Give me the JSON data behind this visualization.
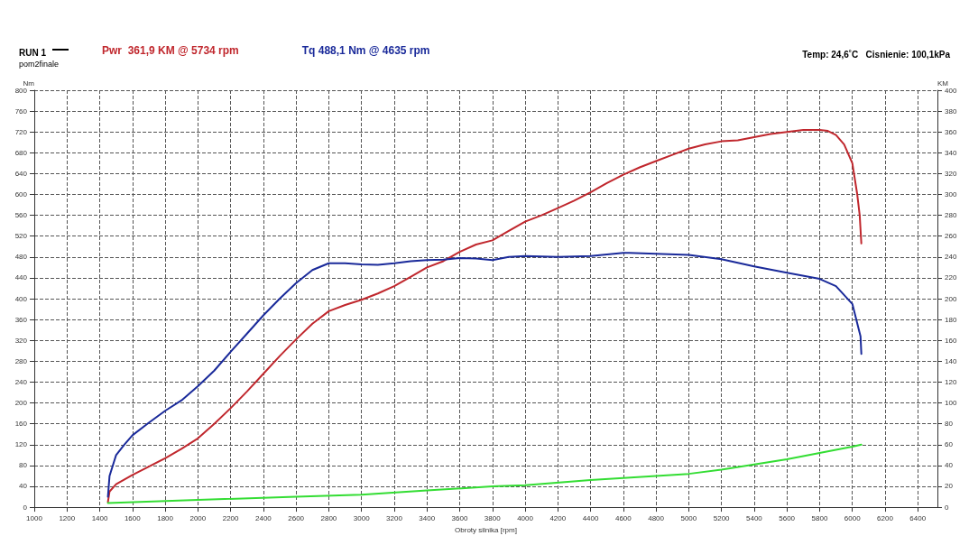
{
  "chart_data": {
    "type": "line",
    "title": "RUN 1",
    "subtitle": "pom2finale",
    "xlabel": "Obroty silnika [rpm]",
    "ylabel": "Nm",
    "y2label": "KM",
    "annotations": [
      "Temp: 24,6˚C   Cisnienie: 100,1kPa"
    ],
    "xlim": [
      1000,
      6520
    ],
    "xticks": [
      1000,
      1200,
      1400,
      1600,
      1800,
      2000,
      2200,
      2400,
      2600,
      2800,
      3000,
      3200,
      3400,
      3600,
      3800,
      4000,
      4200,
      4400,
      4600,
      4800,
      5000,
      5200,
      5400,
      5600,
      5800,
      6000,
      6200,
      6400
    ],
    "ylim": [
      0,
      800
    ],
    "yticks": [
      0,
      40,
      80,
      120,
      160,
      200,
      240,
      280,
      320,
      360,
      400,
      440,
      480,
      520,
      560,
      600,
      640,
      680,
      720,
      760,
      800
    ],
    "y2lim": [
      0,
      400
    ],
    "y2ticks": [
      0,
      20,
      40,
      60,
      80,
      100,
      120,
      140,
      160,
      180,
      200,
      220,
      240,
      260,
      280,
      300,
      320,
      340,
      360,
      380,
      400
    ],
    "grid": true,
    "legend": "top left",
    "marker": "none",
    "line_style": "solid",
    "series": [
      {
        "name": "Pwr  361,9 KM @ 5734 rpm",
        "color": "#c0272d",
        "axis": "y2",
        "x": [
          1450,
          1460,
          1500,
          1600,
          1700,
          1800,
          1900,
          2000,
          2100,
          2200,
          2300,
          2400,
          2500,
          2600,
          2700,
          2800,
          2900,
          3000,
          3100,
          3200,
          3300,
          3400,
          3500,
          3600,
          3700,
          3800,
          3900,
          4000,
          4100,
          4200,
          4300,
          4400,
          4500,
          4600,
          4700,
          4800,
          4900,
          5000,
          5100,
          5200,
          5300,
          5400,
          5500,
          5600,
          5700,
          5734,
          5800,
          5850,
          5900,
          5950,
          6000,
          6030,
          6045,
          6055
        ],
        "values": [
          5,
          15,
          22,
          31,
          39,
          47,
          56,
          66,
          80,
          95,
          111,
          128,
          145,
          161,
          176,
          188,
          194,
          199,
          205,
          212,
          221,
          230,
          236,
          245,
          252,
          256,
          265,
          274,
          280,
          287,
          294,
          302,
          311,
          319,
          326,
          332,
          338,
          344,
          348,
          351,
          352,
          355,
          358,
          360,
          362,
          362,
          362,
          361,
          357,
          348,
          330,
          300,
          280,
          253
        ]
      },
      {
        "name": "Tq 488,1 Nm @ 4635 rpm",
        "color": "#1a2a9a",
        "axis": "y",
        "x": [
          1450,
          1460,
          1500,
          1550,
          1600,
          1700,
          1800,
          1900,
          2000,
          2100,
          2200,
          2300,
          2400,
          2500,
          2600,
          2700,
          2800,
          2900,
          3000,
          3100,
          3200,
          3300,
          3400,
          3500,
          3600,
          3700,
          3800,
          3900,
          4000,
          4200,
          4400,
          4600,
          4635,
          4800,
          5000,
          5200,
          5400,
          5600,
          5800,
          5900,
          6000,
          6050,
          6055
        ],
        "values": [
          20,
          60,
          100,
          120,
          138,
          162,
          185,
          205,
          232,
          262,
          298,
          333,
          368,
          400,
          430,
          455,
          468,
          468,
          466,
          465,
          468,
          472,
          474,
          475,
          478,
          477,
          474,
          480,
          482,
          480,
          482,
          488,
          488,
          486,
          484,
          476,
          462,
          450,
          438,
          424,
          390,
          328,
          294
        ]
      },
      {
        "color": "#33dd33",
        "axis": "y2",
        "x": [
          1450,
          2000,
          2600,
          3000,
          3400,
          3800,
          4000,
          4400,
          4800,
          5000,
          5200,
          5400,
          5600,
          5800,
          6000,
          6055
        ],
        "values": [
          4,
          7,
          10,
          12,
          16,
          20,
          21,
          26,
          30,
          32,
          36,
          41,
          46,
          52,
          58,
          60
        ]
      }
    ]
  }
}
